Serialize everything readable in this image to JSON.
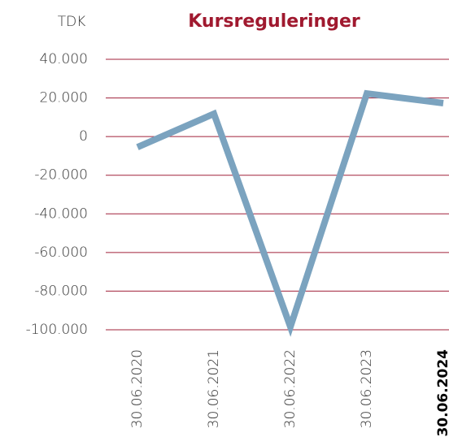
{
  "chart_data": {
    "type": "line",
    "title": "Kursreguleringer",
    "y_label": "TDK",
    "categories": [
      "30.06.2020",
      "30.06.2021",
      "30.06.2022",
      "30.06.2023",
      "30.06.2024"
    ],
    "series": [
      {
        "name": "Kursreguleringer",
        "color": "#7ba3bf",
        "values": [
          -5500,
          11800,
          -98500,
          22300,
          17300
        ]
      }
    ],
    "ylim": [
      -100000,
      40000
    ],
    "yticks": [
      {
        "value": 40000,
        "label": "40.000"
      },
      {
        "value": 20000,
        "label": "20.000"
      },
      0,
      {
        "value": -20000,
        "label": "-20.000"
      },
      {
        "value": -40000,
        "label": "-40.000"
      },
      {
        "value": -60000,
        "label": "-60.000"
      },
      {
        "value": -80000,
        "label": "-80.000"
      },
      {
        "value": -100000,
        "label": "-100.000"
      }
    ],
    "grid": true
  }
}
